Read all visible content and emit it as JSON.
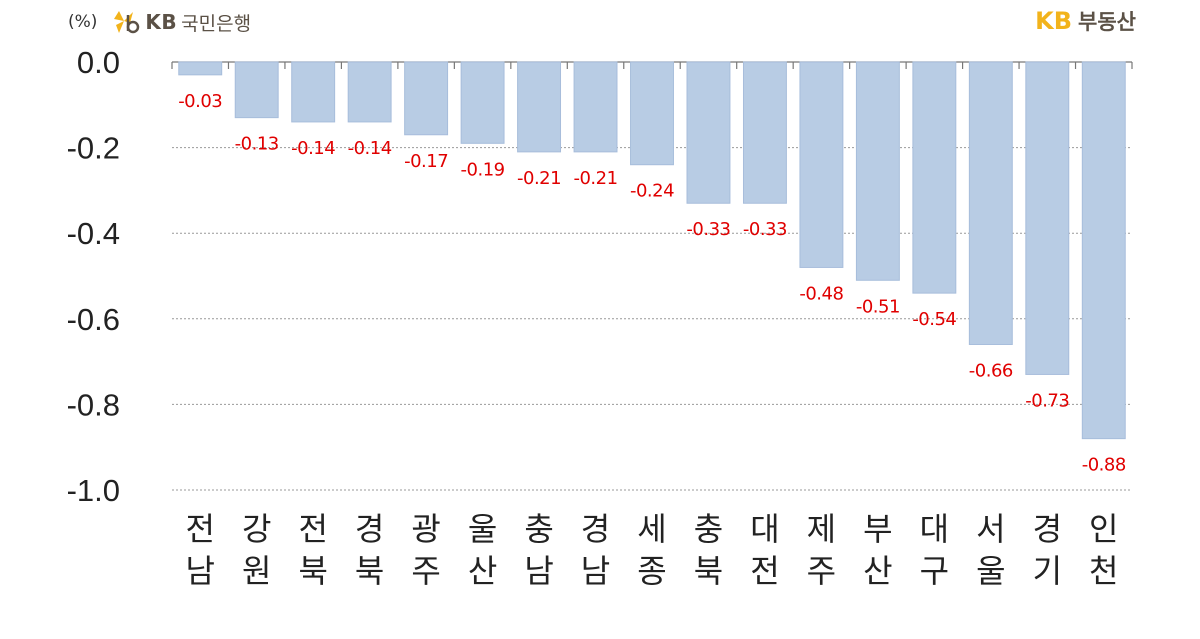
{
  "header": {
    "unit": "(%)",
    "bank_brand": "KB",
    "bank_name": "국민은행",
    "realestate_brand": "KB",
    "realestate_name": "부동산"
  },
  "colors": {
    "bar": "#b8cce4",
    "bar_stroke": "#a7bddb",
    "label": "#e00000",
    "grid": "#999999",
    "text": "#222222",
    "brand_yellow": "#f2b31b",
    "brand_gray": "#5b5146"
  },
  "chart_data": {
    "type": "bar",
    "title": "",
    "xlabel": "",
    "ylabel": "(%)",
    "ylim": [
      -1.0,
      0.0
    ],
    "yticks": [
      0.0,
      -0.2,
      -0.4,
      -0.6,
      -0.8,
      -1.0
    ],
    "ytick_labels": [
      "0.0",
      "-0.2",
      "-0.4",
      "-0.6",
      "-0.8",
      "-1.0"
    ],
    "grid": true,
    "categories": [
      [
        "전",
        "남"
      ],
      [
        "강",
        "원"
      ],
      [
        "전",
        "북"
      ],
      [
        "경",
        "북"
      ],
      [
        "광",
        "주"
      ],
      [
        "울",
        "산"
      ],
      [
        "충",
        "남"
      ],
      [
        "경",
        "남"
      ],
      [
        "세",
        "종"
      ],
      [
        "충",
        "북"
      ],
      [
        "대",
        "전"
      ],
      [
        "제",
        "주"
      ],
      [
        "부",
        "산"
      ],
      [
        "대",
        "구"
      ],
      [
        "서",
        "울"
      ],
      [
        "경",
        "기"
      ],
      [
        "인",
        "천"
      ]
    ],
    "values": [
      -0.03,
      -0.13,
      -0.14,
      -0.14,
      -0.17,
      -0.19,
      -0.21,
      -0.21,
      -0.24,
      -0.33,
      -0.33,
      -0.48,
      -0.51,
      -0.54,
      -0.66,
      -0.73,
      -0.88
    ],
    "value_labels": [
      "-0.03",
      "-0.13",
      "-0.14",
      "-0.14",
      "-0.17",
      "-0.19",
      "-0.21",
      "-0.21",
      "-0.24",
      "-0.33",
      "-0.33",
      "-0.48",
      "-0.51",
      "-0.54",
      "-0.66",
      "-0.73",
      "-0.88"
    ]
  }
}
